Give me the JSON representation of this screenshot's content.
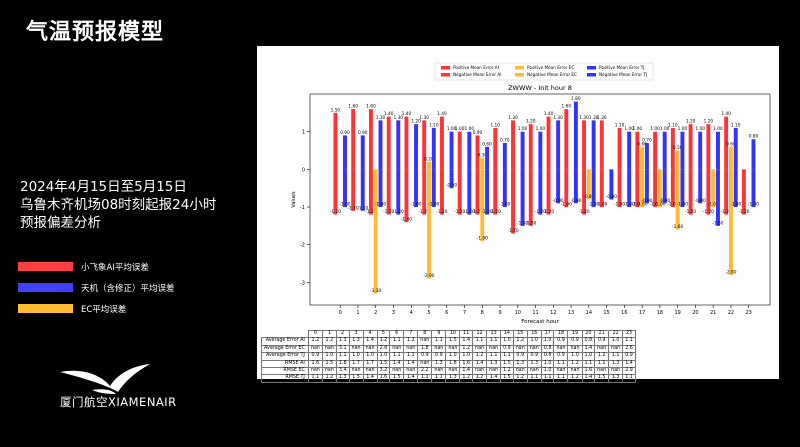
{
  "slide_title": "气温预报模型",
  "description_lines": [
    "2024年4月15日至5月15日",
    "乌鲁木齐机场08时刻起报24小时",
    "预报偏差分析"
  ],
  "legend_items": [
    {
      "label": "小飞象AI平均误差",
      "color": "#ff4040"
    },
    {
      "label": "天机（含修正）平均误差",
      "color": "#4040ff"
    },
    {
      "label": "EC平均误差",
      "color": "#ffbb33"
    }
  ],
  "logo": {
    "text": "厦门航空XIAMENAIR"
  },
  "chart_data": {
    "type": "bar",
    "title": "ZWWW - Init hour 8",
    "xlabel": "Forecast hour",
    "ylabel": "Values",
    "ylim": [
      -3.6,
      2.0
    ],
    "yticks": [
      -3,
      -2,
      -1,
      0,
      1
    ],
    "categories": [
      "0",
      "1",
      "2",
      "3",
      "4",
      "5",
      "6",
      "7",
      "8",
      "9",
      "10",
      "11",
      "12",
      "13",
      "14",
      "15",
      "16",
      "17",
      "18",
      "19",
      "20",
      "21",
      "22",
      "23"
    ],
    "legend": [
      "Positive Mean Error AI",
      "Negative Mean Error AI",
      "Positive Mean Error EC",
      "Negative Mean Error EC",
      "Positive Mean Error TJ",
      "Negative Mean Error TJ"
    ],
    "series": [
      {
        "name": "Positive Mean Error AI",
        "color": "#ff3333",
        "values": [
          1.5,
          1.6,
          1.6,
          1.4,
          1.4,
          1.3,
          1.4,
          1.0,
          0.9,
          1.1,
          1.3,
          1.2,
          1.4,
          1.6,
          1.3,
          1.3,
          1.1,
          1.0,
          1.0,
          1.1,
          1.2,
          1.2,
          1.4,
          null
        ]
      },
      {
        "name": "Negative Mean Error AI",
        "color": "#ff3333",
        "values": [
          -1.2,
          -1.1,
          -1.2,
          -1.2,
          -1.4,
          -1.2,
          -1.2,
          -1.2,
          -1.2,
          -1.2,
          -1.7,
          -1.5,
          -1.2,
          -1.0,
          -1.2,
          -1.0,
          -1.0,
          -1.0,
          -1.0,
          -1.0,
          -1.2,
          -1.2,
          -1.2,
          -1.2
        ]
      },
      {
        "name": "Positive Mean Error EC",
        "color": "#ffbb33",
        "values": [
          null,
          null,
          null,
          null,
          null,
          0.2,
          null,
          null,
          0.3,
          null,
          null,
          null,
          null,
          null,
          null,
          null,
          null,
          0.6,
          null,
          0.5,
          null,
          null,
          0.6,
          null
        ]
      },
      {
        "name": "Negative Mean Error EC",
        "color": "#ffbb33",
        "values": [
          null,
          null,
          -3.3,
          null,
          null,
          -2.9,
          null,
          null,
          -1.9,
          null,
          null,
          null,
          null,
          null,
          -0.8,
          null,
          null,
          -1.0,
          -1.0,
          -1.6,
          null,
          -1.0,
          -2.8,
          null
        ]
      },
      {
        "name": "Positive Mean Error TJ",
        "color": "#3333ff",
        "values": [
          0.9,
          0.9,
          1.3,
          1.3,
          1.2,
          1.1,
          1.0,
          1.0,
          0.6,
          0.7,
          1.0,
          1.0,
          1.3,
          1.8,
          1.3,
          null,
          1.0,
          0.7,
          1.0,
          1.0,
          1.0,
          1.0,
          1.1,
          0.8
        ]
      },
      {
        "name": "Negative Mean Error TJ",
        "color": "#3333ff",
        "values": [
          -1.0,
          -1.1,
          -1.0,
          -1.2,
          -1.0,
          -1.0,
          -0.5,
          -1.2,
          -1.2,
          -1.0,
          -1.5,
          -1.2,
          -0.9,
          -0.9,
          -1.0,
          -0.8,
          -1.0,
          -0.9,
          -0.9,
          -1.0,
          -0.9,
          -1.5,
          -1.0,
          -1.0
        ]
      }
    ],
    "bar_labels": {
      "ai_pos": [
        "1.50",
        "1.60",
        "1.60",
        "1.40",
        "1.40",
        "1.30",
        "1.40",
        "1.00",
        "0.90",
        "1.10",
        "1.30",
        "1.20",
        "1.40",
        "1.60",
        "1.30",
        "1.30",
        "1.10",
        "1.00",
        "1.00",
        "1.10",
        "1.20",
        "1.20",
        "1.40",
        ""
      ],
      "ai_neg": [
        "-1.20",
        "-1.10",
        "-1.20",
        "-1.20",
        "-1.40",
        "-1.20",
        "-1.20",
        "-1.20",
        "-1.20",
        "-1.20",
        "-1.70",
        "-1.50",
        "-1.20",
        "-1.00",
        "-1.20",
        "-1.00",
        "-1.00",
        "-1.00",
        "-1.00",
        "-1.00",
        "-1.20",
        "-1.20",
        "-1.20",
        "-1.20"
      ],
      "ec_pos": [
        "",
        "",
        "",
        "",
        "",
        "0.20",
        "",
        "",
        "0.30",
        "",
        "",
        "",
        "",
        "",
        "",
        "",
        "",
        "0.60",
        "",
        "0.50",
        "",
        "",
        "0.60",
        ""
      ],
      "ec_neg": [
        "",
        "",
        "-3.30",
        "",
        "",
        "-2.90",
        "",
        "",
        "-1.90",
        "",
        "",
        "",
        "",
        "",
        "-0.80",
        "",
        "",
        "-1.00",
        "-1.00",
        "-1.60",
        "",
        "-1.00",
        "-2.80",
        ""
      ],
      "tj_pos": [
        "0.90",
        "0.90",
        "1.30",
        "1.30",
        "1.20",
        "1.10",
        "1.00",
        "1.00",
        "0.60",
        "0.70",
        "1.00",
        "1.00",
        "1.30",
        "1.80",
        "1.30",
        "",
        "1.00",
        "0.70",
        "1.00",
        "1.00",
        "1.00",
        "1.00",
        "1.10",
        "0.80"
      ],
      "tj_neg": [
        "-1.00",
        "-1.10",
        "-1.00",
        "-1.20",
        "-1.00",
        "-1.00",
        "-0.50",
        "-1.20",
        "-1.20",
        "-1.00",
        "-1.50",
        "-1.20",
        "-0.90",
        "-0.90",
        "-1.00",
        "-0.80",
        "-1.00",
        "-0.90",
        "-0.90",
        "-1.00",
        "-0.90",
        "-1.50",
        "-1.00",
        "-1.00"
      ]
    },
    "table": {
      "header": [
        "0",
        "1",
        "2",
        "3",
        "4",
        "5",
        "6",
        "7",
        "8",
        "9",
        "10",
        "11",
        "12",
        "13",
        "14",
        "15",
        "16",
        "17",
        "18",
        "19",
        "20",
        "21",
        "22",
        "23"
      ],
      "rows": [
        {
          "label": "Average Error AI",
          "cells": [
            "1.2",
            "1.2",
            "1.3",
            "1.3",
            "1.4",
            "1.2",
            "1.1",
            "1.2",
            "nan",
            "1.1",
            "1.5",
            "1.4",
            "1.1",
            "1.1",
            "1.0",
            "1.2",
            "1.0",
            "1.0",
            "0.9",
            "0.9",
            "0.8",
            "0.9",
            "1.0",
            "1.1"
          ]
        },
        {
          "label": "Average Error EC",
          "cells": [
            "nan",
            "nan",
            "3.1",
            "nan",
            "nan",
            "2.8",
            "nan",
            "nan",
            "1.8",
            "nan",
            "nan",
            "1.2",
            "nan",
            "nan",
            "0.9",
            "nan",
            "nan",
            "0.8",
            "nan",
            "nan",
            "1.4",
            "nan",
            "nan",
            "2.6"
          ]
        },
        {
          "label": "Average Error TJ",
          "cells": [
            "0.9",
            "1.0",
            "1.1",
            "1.0",
            "1.0",
            "1.0",
            "1.1",
            "1.1",
            "0.9",
            "0.9",
            "1.0",
            "1.0",
            "1.2",
            "1.1",
            "1.1",
            "0.9",
            "0.9",
            "0.8",
            "0.9",
            "1.0",
            "1.0",
            "1.2",
            "1.1",
            "0.9"
          ]
        },
        {
          "label": "RMSE AI",
          "cells": [
            "1.6",
            "1.5",
            "1.8",
            "1.7",
            "1.7",
            "1.5",
            "1.4",
            "1.4",
            "nan",
            "1.3",
            "1.8",
            "1.6",
            "1.4",
            "1.3",
            "1.5",
            "1.3",
            "1.3",
            "1.0",
            "1.1",
            "1.2",
            "1.1",
            "1.1",
            "1.3",
            "1.4"
          ]
        },
        {
          "label": "RMSE EC",
          "cells": [
            "nan",
            "nan",
            "3.4",
            "nan",
            "nan",
            "3.2",
            "nan",
            "nan",
            "2.2",
            "nan",
            "nan",
            "1.4",
            "nan",
            "nan",
            "1.2",
            "nan",
            "nan",
            "1.0",
            "nan",
            "nan",
            "1.6",
            "nan",
            "nan",
            "2.9"
          ]
        },
        {
          "label": "RMSE TJ",
          "cells": [
            "1.1",
            "1.2",
            "1.3",
            "1.5",
            "1.4",
            "1.6",
            "1.5",
            "1.4",
            "1.1",
            "1.1",
            "1.3",
            "1.2",
            "1.2",
            "1.4",
            "1.5",
            "1.2",
            "1.1",
            "1.1",
            "1.1",
            "1.2",
            "1.4",
            "1.5",
            "1.3",
            "1.1"
          ]
        }
      ]
    }
  }
}
